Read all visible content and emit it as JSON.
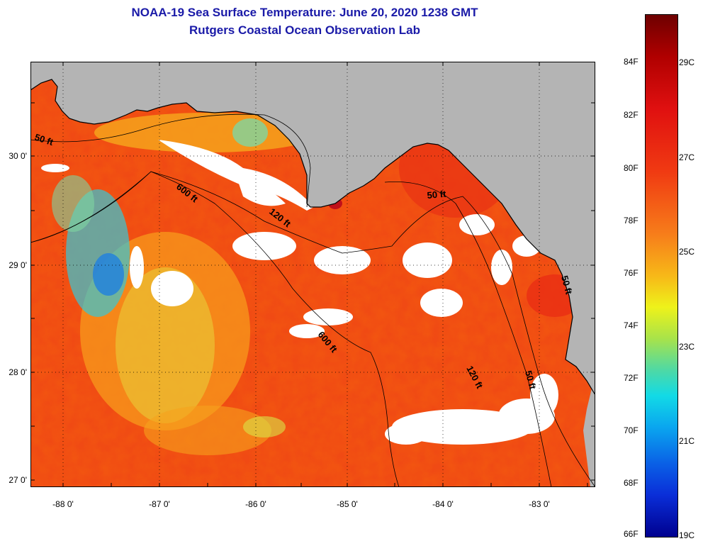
{
  "header": {
    "title": "NOAA-19 Sea Surface Temperature:  June 20, 2020 1238 GMT",
    "subtitle": "Rutgers Coastal Ocean Observation Lab"
  },
  "map": {
    "latitude_labels": [
      "30 0'",
      "29 0'",
      "28 0'",
      "27 0'"
    ],
    "longitude_labels": [
      "-88 0'",
      "-87 0'",
      "-86 0'",
      "-85 0'",
      "-84 0'",
      "-83 0'"
    ],
    "contour_labels": [
      "50 ft",
      "600 ft",
      "120 ft",
      "50 ft",
      "600 ft",
      "120 ft",
      "50 ft",
      "50 ft"
    ],
    "colors": {
      "land": "#b4b4b4",
      "cloud": "#ffffff",
      "sea_dominant": "#f04a14"
    }
  },
  "colorbar": {
    "fahrenheit_labels": [
      "84F",
      "82F",
      "80F",
      "78F",
      "76F",
      "74F",
      "72F",
      "70F",
      "68F",
      "66F"
    ],
    "celsius_labels": [
      "29C",
      "27C",
      "25C",
      "23C",
      "21C",
      "19C"
    ],
    "colors": [
      "#6e0000",
      "#e01010",
      "#f77d1a",
      "#eef21a",
      "#12dae6",
      "#0a60e6",
      "#00008f"
    ]
  }
}
